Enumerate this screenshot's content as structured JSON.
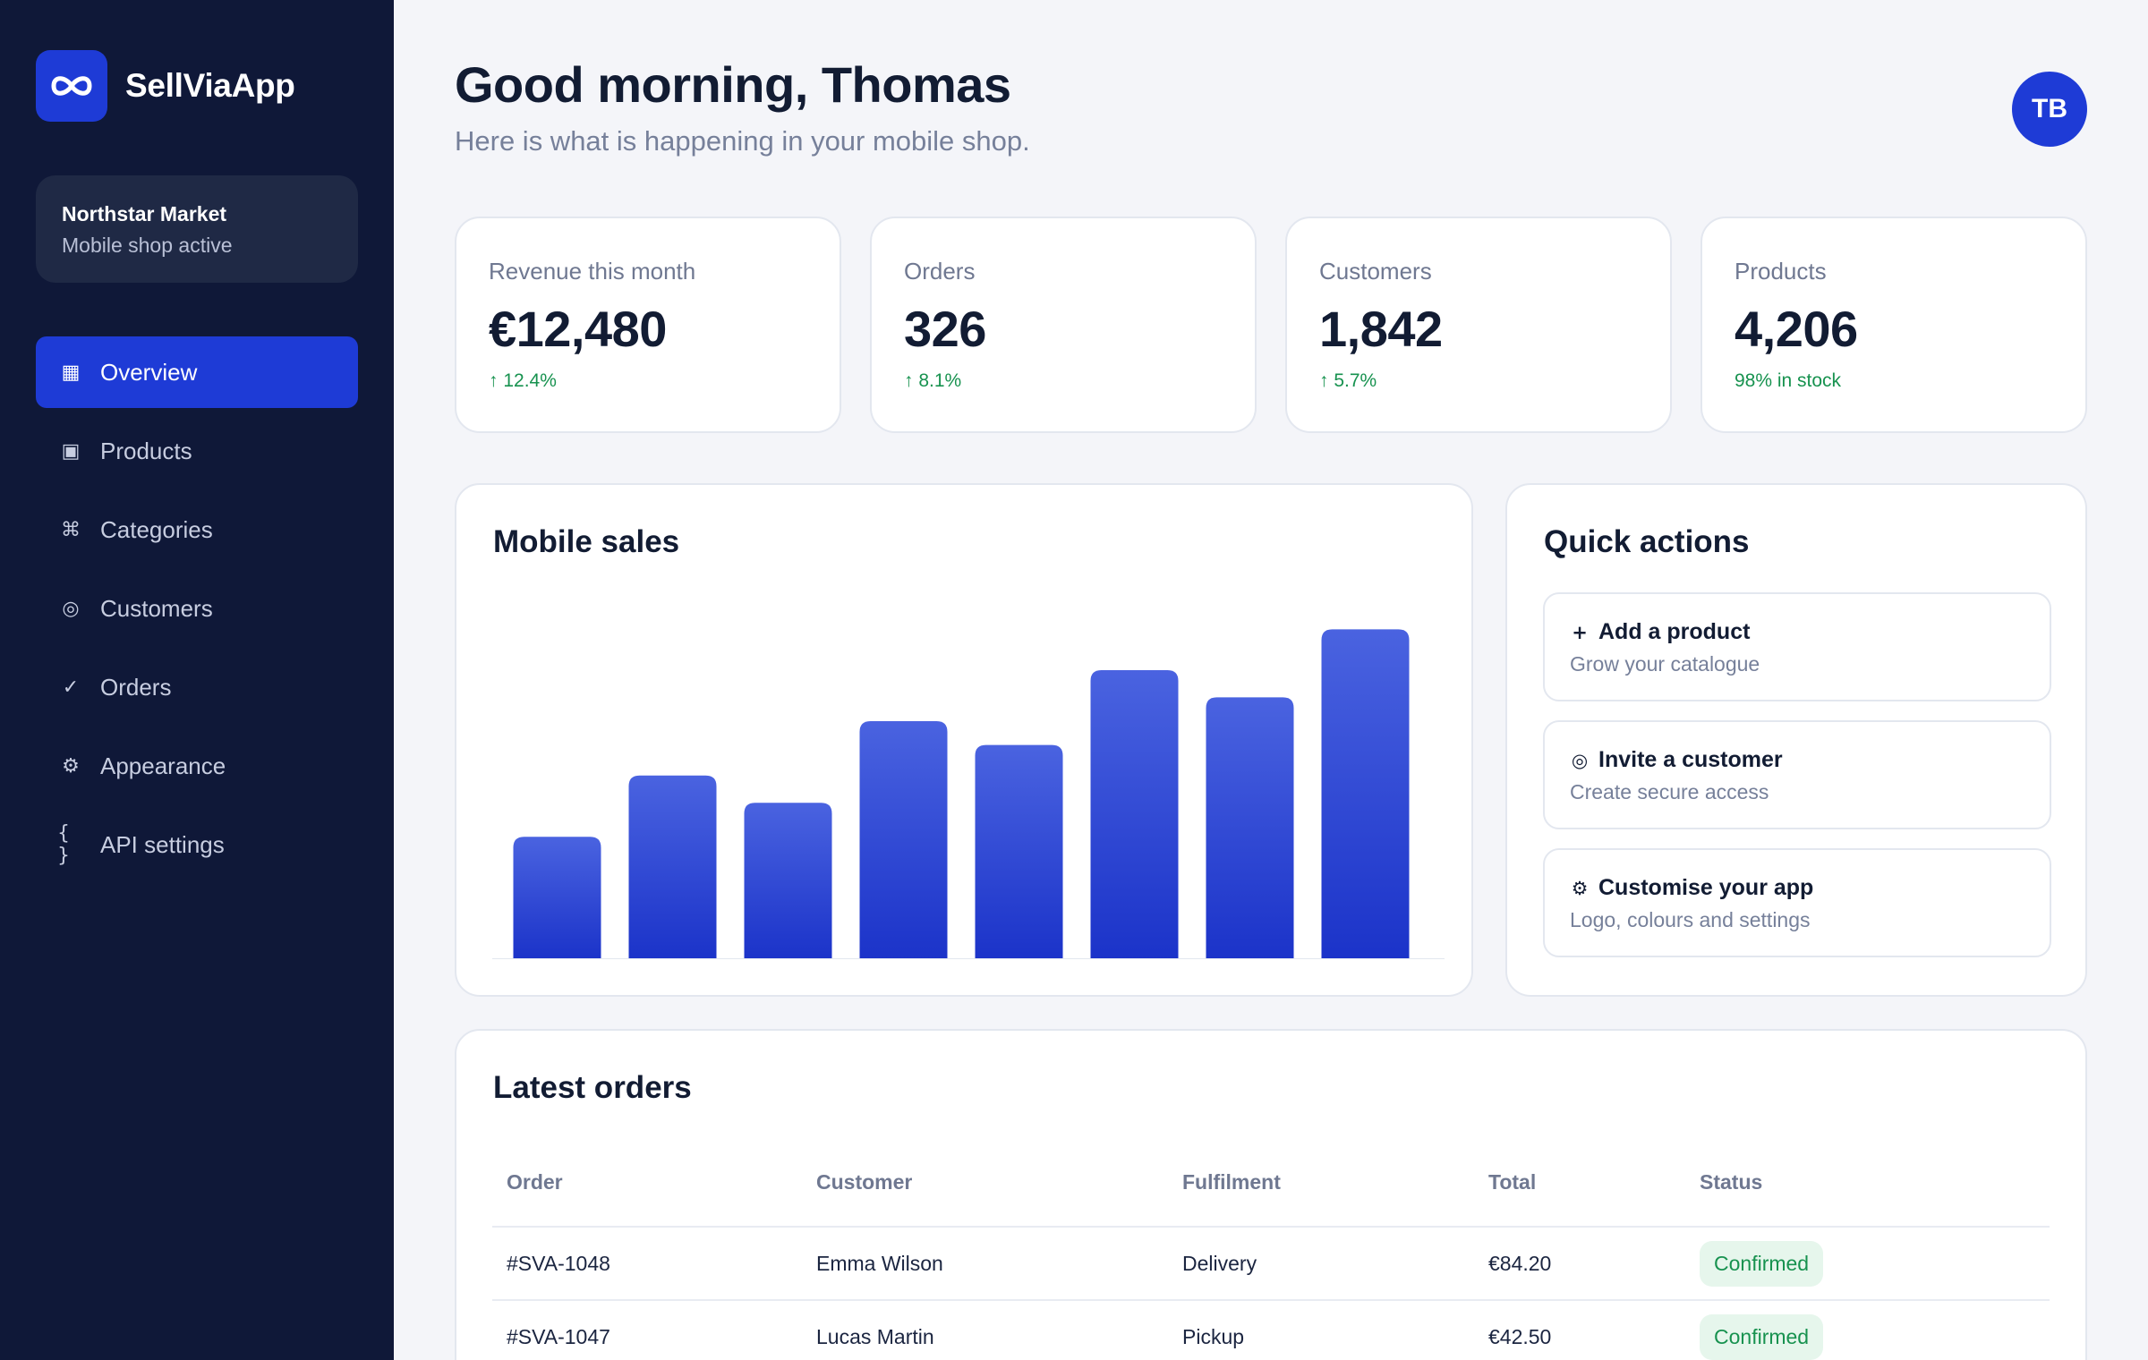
{
  "brand": {
    "name": "SellViaApp",
    "logo_icon": "infinity-loop-icon"
  },
  "shop": {
    "name": "Northstar Market",
    "status": "Mobile shop active"
  },
  "nav": {
    "items": [
      {
        "label": "Overview",
        "icon": "grid-icon",
        "glyph": "▦",
        "active": true
      },
      {
        "label": "Products",
        "icon": "box-icon",
        "glyph": "▣"
      },
      {
        "label": "Categories",
        "icon": "command-icon",
        "glyph": "⌘"
      },
      {
        "label": "Customers",
        "icon": "customer-icon",
        "glyph": "◎"
      },
      {
        "label": "Orders",
        "icon": "check-icon",
        "glyph": "✓"
      },
      {
        "label": "Appearance",
        "icon": "gear-icon",
        "glyph": "⚙"
      },
      {
        "label": "API settings",
        "icon": "braces-icon",
        "glyph": "{ }"
      }
    ]
  },
  "header": {
    "greeting": "Good morning, Thomas",
    "subtitle": "Here is what is happening in your mobile shop.",
    "avatar_initials": "TB"
  },
  "stats": [
    {
      "label": "Revenue this month",
      "value": "€12,480",
      "delta": "↑ 12.4%"
    },
    {
      "label": "Orders",
      "value": "326",
      "delta": "↑ 8.1%"
    },
    {
      "label": "Customers",
      "value": "1,842",
      "delta": "↑ 5.7%"
    },
    {
      "label": "Products",
      "value": "4,206",
      "delta": "98% in stock"
    }
  ],
  "sales": {
    "title": "Mobile sales"
  },
  "chart_data": {
    "type": "bar",
    "title": "Mobile sales",
    "categories": [
      "",
      "",
      "",
      "",
      "",
      "",
      "",
      ""
    ],
    "values": [
      36,
      54,
      46,
      70,
      63,
      85,
      77,
      97
    ],
    "ylim": [
      0,
      100
    ],
    "grid": false,
    "legend": "none",
    "bar_color_top": "#4a63e0",
    "bar_color_bottom": "#1b33c9"
  },
  "quick_actions": {
    "title": "Quick actions",
    "items": [
      {
        "icon": "plus-icon",
        "glyph": "+",
        "title": "Add a product",
        "subtitle": "Grow your catalogue"
      },
      {
        "icon": "invite-icon",
        "glyph": "◎",
        "title": "Invite a customer",
        "subtitle": "Create secure access"
      },
      {
        "icon": "gear-icon",
        "glyph": "⚙",
        "title": "Customise your app",
        "subtitle": "Logo, colours and settings"
      }
    ]
  },
  "orders": {
    "title": "Latest orders",
    "columns": [
      "Order",
      "Customer",
      "Fulfilment",
      "Total",
      "Status"
    ],
    "rows": [
      {
        "order": "#SVA-1048",
        "customer": "Emma Wilson",
        "fulfilment": "Delivery",
        "total": "€84.20",
        "status": "Confirmed"
      },
      {
        "order": "#SVA-1047",
        "customer": "Lucas Martin",
        "fulfilment": "Pickup",
        "total": "€42.50",
        "status": "Confirmed"
      }
    ]
  },
  "colors": {
    "sidebar_bg": "#0f1838",
    "accent": "#1e3bd6",
    "positive": "#17924f",
    "page_bg": "#f4f5f9"
  }
}
